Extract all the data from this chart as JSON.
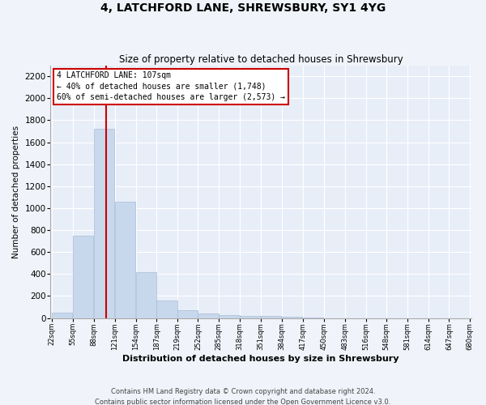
{
  "title1": "4, LATCHFORD LANE, SHREWSBURY, SY1 4YG",
  "title2": "Size of property relative to detached houses in Shrewsbury",
  "xlabel": "Distribution of detached houses by size in Shrewsbury",
  "ylabel": "Number of detached properties",
  "bar_color": "#c8d8ec",
  "bar_edge_color": "#a8bcd8",
  "background_color": "#e8eef8",
  "grid_color": "#ffffff",
  "fig_background_color": "#f0f4fa",
  "bin_edges": [
    22,
    55,
    88,
    121,
    154,
    187,
    219,
    252,
    285,
    318,
    351,
    384,
    417,
    450,
    483,
    516,
    548,
    581,
    614,
    647,
    680
  ],
  "bar_heights": [
    50,
    750,
    1720,
    1060,
    420,
    155,
    70,
    40,
    28,
    20,
    15,
    10,
    6,
    0,
    0,
    0,
    0,
    0,
    0,
    0
  ],
  "property_size": 107,
  "red_line_color": "#cc0000",
  "annotation_line1": "4 LATCHFORD LANE: 107sqm",
  "annotation_line2": "← 40% of detached houses are smaller (1,748)",
  "annotation_line3": "60% of semi-detached houses are larger (2,573) →",
  "annotation_box_color": "#ffffff",
  "annotation_box_edge_color": "#cc0000",
  "footer1": "Contains HM Land Registry data © Crown copyright and database right 2024.",
  "footer2": "Contains public sector information licensed under the Open Government Licence v3.0.",
  "ylim": [
    0,
    2300
  ],
  "yticks": [
    0,
    200,
    400,
    600,
    800,
    1000,
    1200,
    1400,
    1600,
    1800,
    2000,
    2200
  ]
}
